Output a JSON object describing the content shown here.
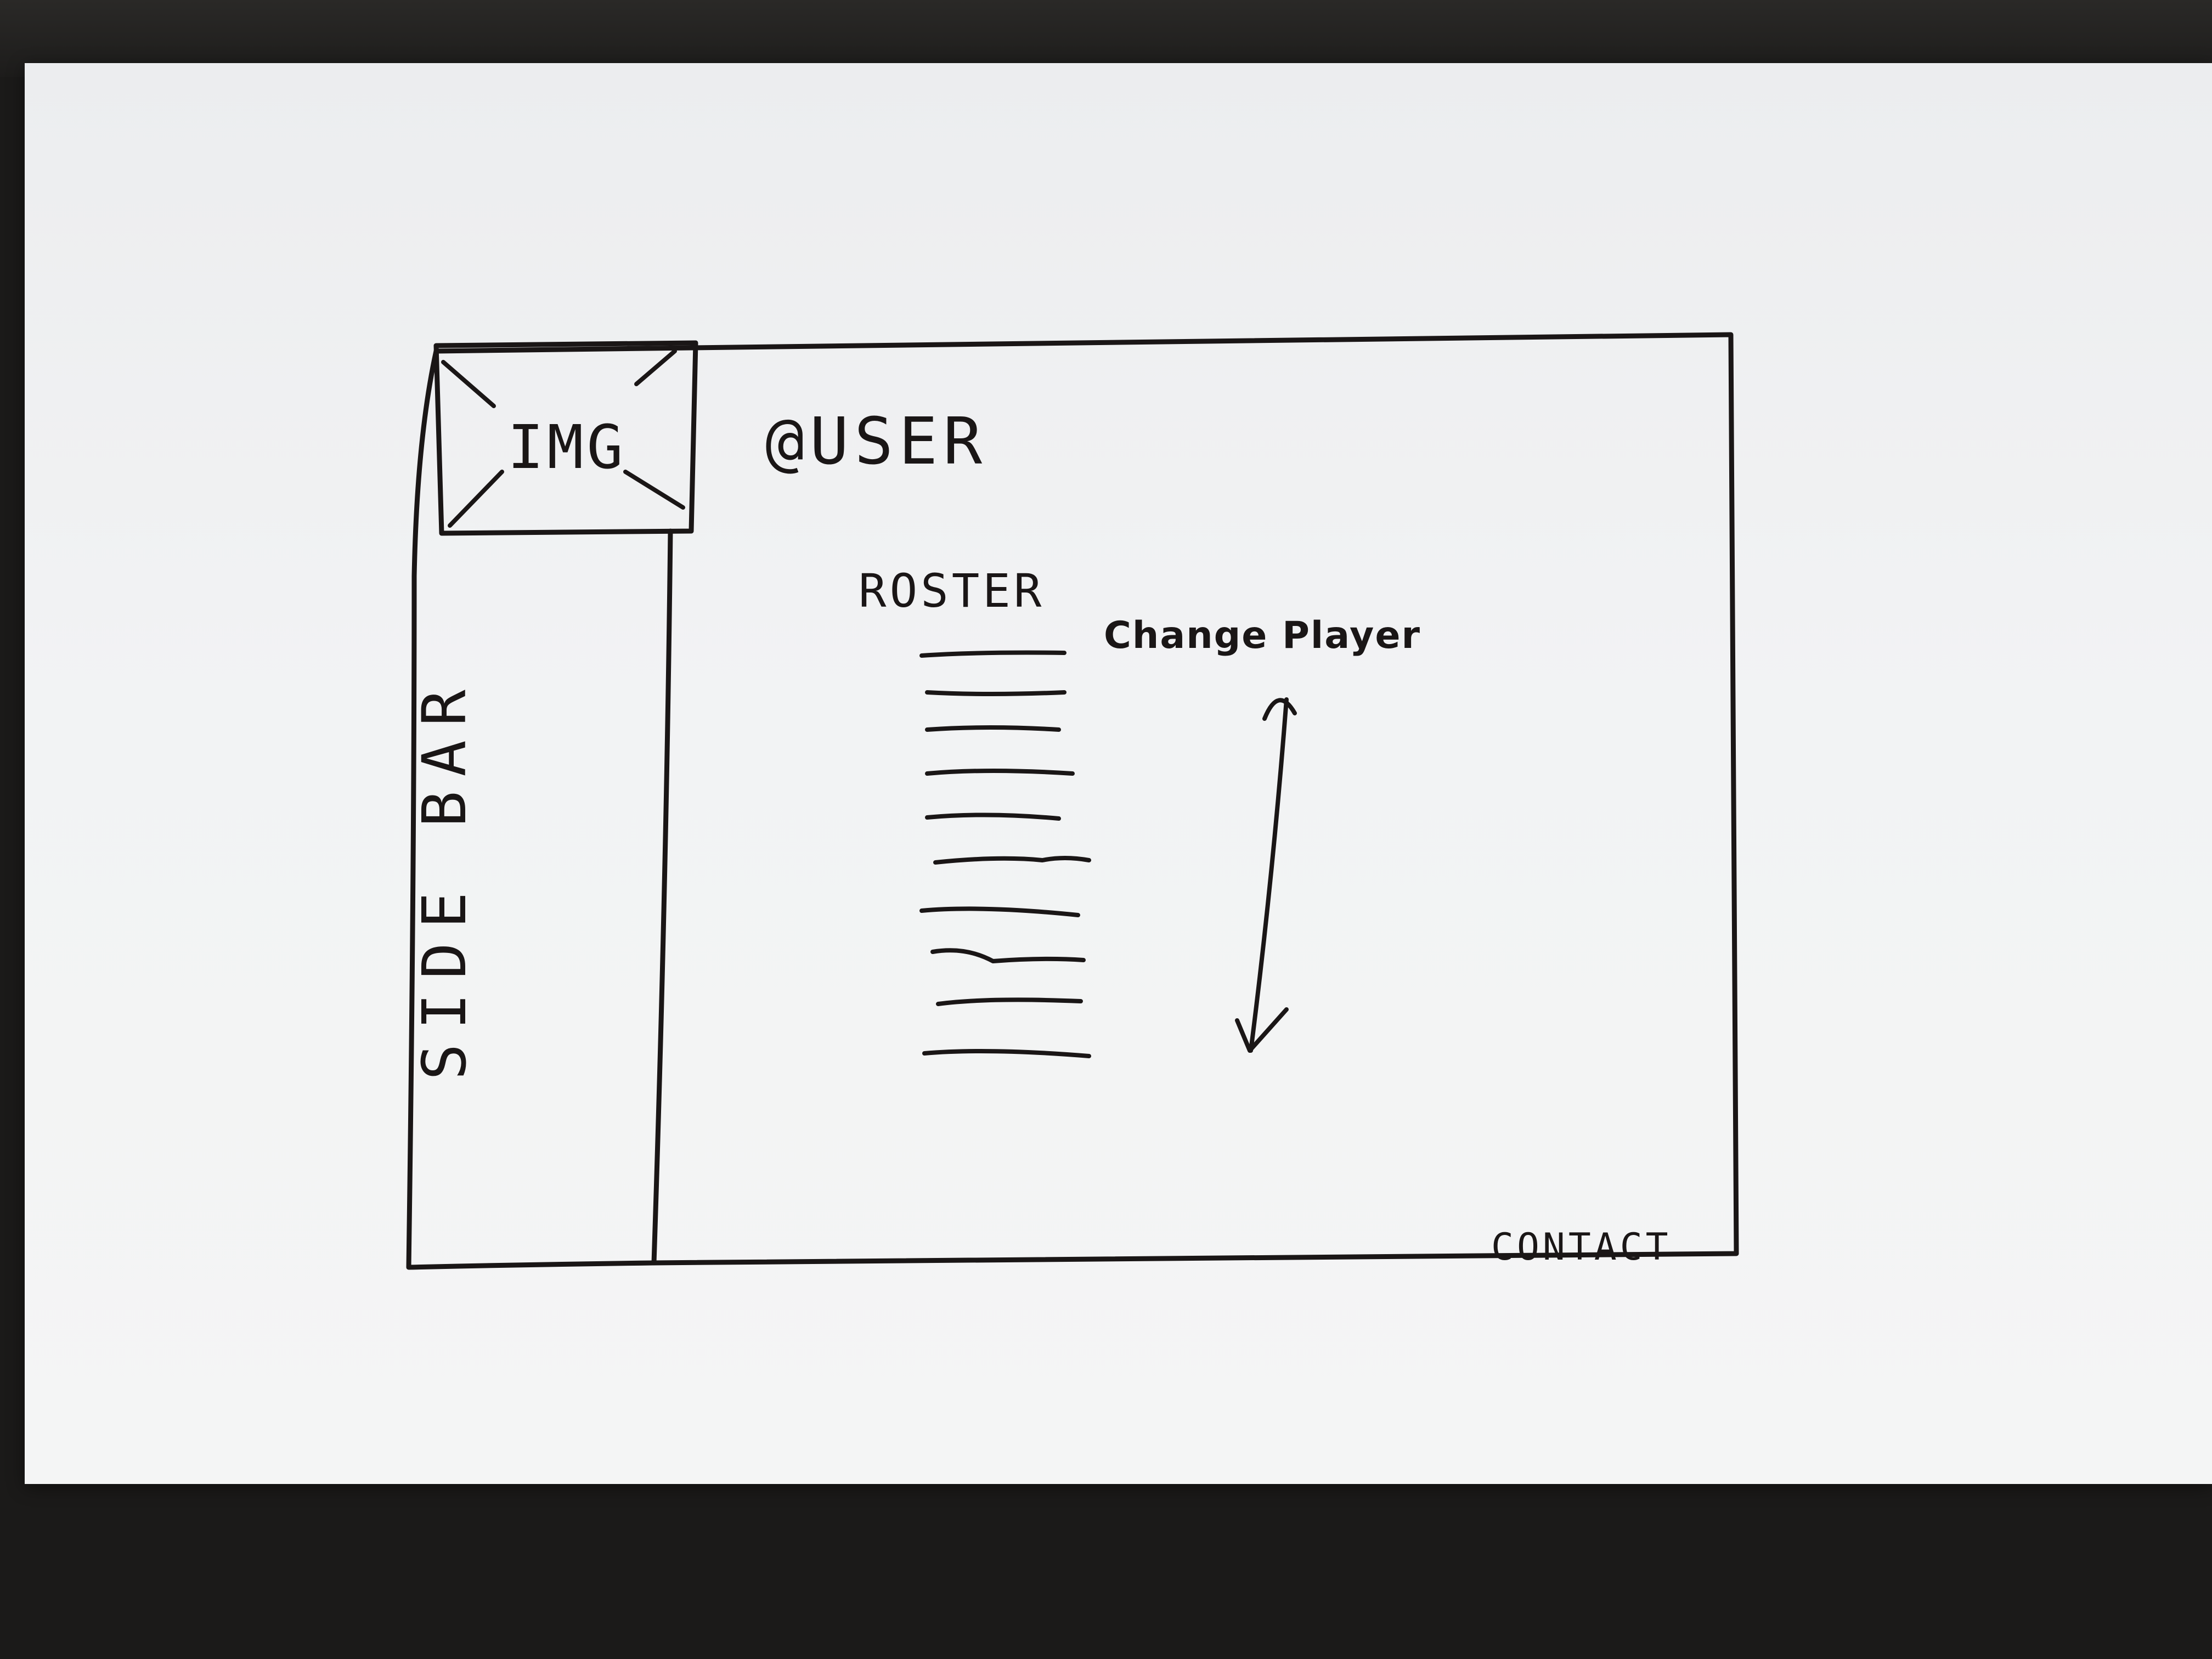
{
  "header": {
    "avatar_placeholder": "IMG",
    "username": "@USER"
  },
  "sidebar": {
    "label": "SIDE BAR"
  },
  "main": {
    "roster": {
      "heading": "ROSTER",
      "action_label": "Change Player",
      "row_count": 10
    }
  },
  "footer": {
    "contact_label": "CONTACT"
  },
  "icons": {
    "avatar": "image-placeholder-icon",
    "scroll": "scroll-arrow-icon"
  },
  "colors": {
    "ink": "#1a1616",
    "paper": "#f2f3f4",
    "desk": "#1b1a19"
  }
}
